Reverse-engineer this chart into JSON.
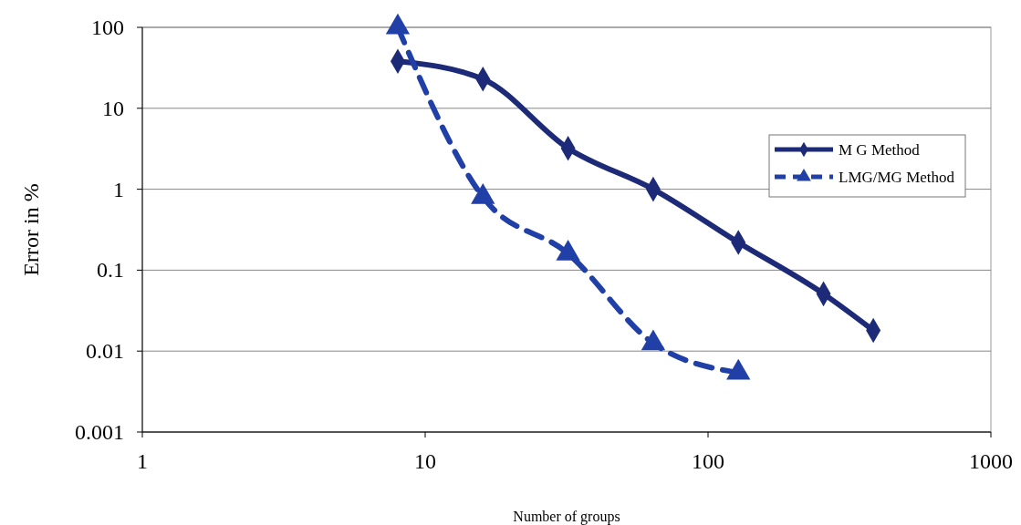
{
  "chart_data": {
    "type": "line",
    "xlabel": "Number of groups",
    "ylabel": "Error in %",
    "log": "xy",
    "grid": "y",
    "legend": "top right",
    "xlim": [
      1,
      1000
    ],
    "xticks": [
      1,
      10,
      100,
      1000
    ],
    "ylim": [
      0.001,
      100
    ],
    "yticks": [
      0.001,
      0.01,
      0.1,
      1,
      10,
      100
    ],
    "series": [
      {
        "name": "M G Method",
        "color": "#1c2a78",
        "marker": "diamond",
        "line_style": "solid",
        "x": [
          8,
          16,
          32,
          64,
          128,
          256,
          384
        ],
        "values": [
          38,
          23,
          3.2,
          1,
          0.22,
          0.051,
          0.018
        ]
      },
      {
        "name": "LMG/MG Method",
        "color": "#2040a8",
        "marker": "triangle",
        "line_style": "dashed",
        "x": [
          8,
          16,
          32,
          64,
          128
        ],
        "values": [
          100,
          0.8,
          0.16,
          0.0125,
          0.0054
        ]
      }
    ]
  }
}
